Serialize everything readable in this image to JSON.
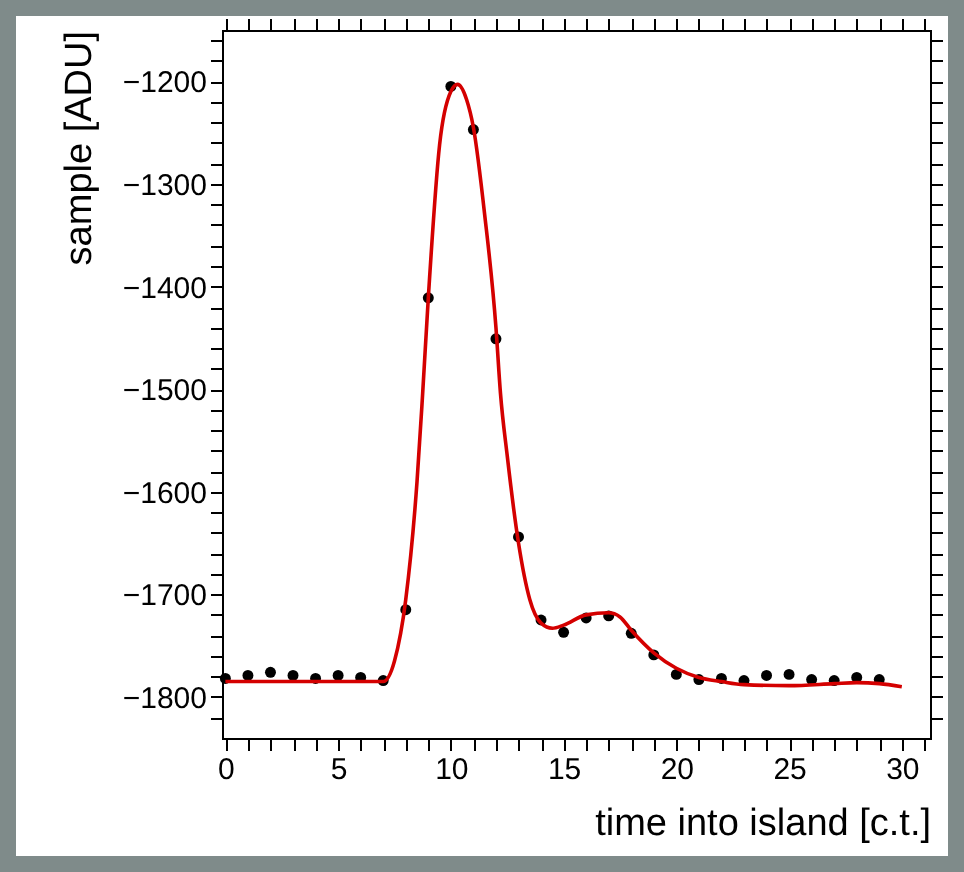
{
  "chart_data": {
    "type": "scatter",
    "xlabel": "time into island [c.t.]",
    "ylabel": "sample [ADU]",
    "xlim": [
      -0.15,
      31.25
    ],
    "ylim": [
      -1840,
      -1150
    ],
    "xticks": [
      0,
      {
        "value": 1,
        "label": null
      },
      {
        "value": 2,
        "label": null
      },
      {
        "value": 3,
        "label": null
      },
      {
        "value": 4,
        "label": null
      },
      5,
      {
        "value": 6,
        "label": null
      },
      {
        "value": 7,
        "label": null
      },
      {
        "value": 8,
        "label": null
      },
      {
        "value": 9,
        "label": null
      },
      10,
      {
        "value": 11,
        "label": null
      },
      {
        "value": 12,
        "label": null
      },
      {
        "value": 13,
        "label": null
      },
      {
        "value": 14,
        "label": null
      },
      15,
      {
        "value": 16,
        "label": null
      },
      {
        "value": 17,
        "label": null
      },
      {
        "value": 18,
        "label": null
      },
      {
        "value": 19,
        "label": null
      },
      20,
      {
        "value": 21,
        "label": null
      },
      {
        "value": 22,
        "label": null
      },
      {
        "value": 23,
        "label": null
      },
      {
        "value": 24,
        "label": null
      },
      25,
      {
        "value": 26,
        "label": null
      },
      {
        "value": 27,
        "label": null
      },
      {
        "value": 28,
        "label": null
      },
      {
        "value": 29,
        "label": null
      },
      30,
      {
        "value": 31,
        "label": null
      }
    ],
    "yticks": [
      {
        "value": -1820,
        "label": null
      },
      -1800,
      {
        "value": -1780,
        "label": null
      },
      {
        "value": -1760,
        "label": null
      },
      {
        "value": -1740,
        "label": null
      },
      {
        "value": -1720,
        "label": null
      },
      -1700,
      {
        "value": -1680,
        "label": null
      },
      {
        "value": -1660,
        "label": null
      },
      {
        "value": -1640,
        "label": null
      },
      {
        "value": -1620,
        "label": null
      },
      -1600,
      {
        "value": -1580,
        "label": null
      },
      {
        "value": -1560,
        "label": null
      },
      {
        "value": -1540,
        "label": null
      },
      {
        "value": -1520,
        "label": null
      },
      -1500,
      {
        "value": -1480,
        "label": null
      },
      {
        "value": -1460,
        "label": null
      },
      {
        "value": -1440,
        "label": null
      },
      {
        "value": -1420,
        "label": null
      },
      -1400,
      {
        "value": -1380,
        "label": null
      },
      {
        "value": -1360,
        "label": null
      },
      {
        "value": -1340,
        "label": null
      },
      {
        "value": -1320,
        "label": null
      },
      -1300,
      {
        "value": -1280,
        "label": null
      },
      {
        "value": -1260,
        "label": null
      },
      {
        "value": -1240,
        "label": null
      },
      {
        "value": -1220,
        "label": null
      },
      -1200,
      {
        "value": -1180,
        "label": null
      },
      {
        "value": -1160,
        "label": null
      }
    ],
    "grid": false,
    "series": [
      {
        "color": "#000000",
        "marker": "circle",
        "x": [
          0,
          1,
          2,
          3,
          4,
          5,
          6,
          7,
          8,
          9,
          10,
          11,
          12,
          13,
          14,
          15,
          16,
          17,
          18,
          19,
          20,
          21,
          22,
          23,
          24,
          25,
          26,
          27,
          28,
          29
        ],
        "values": [
          -1782,
          -1779,
          -1776,
          -1779,
          -1782,
          -1779,
          -1781,
          -1784,
          -1715,
          -1411,
          -1205,
          -1247,
          -1451,
          -1644,
          -1725,
          -1737,
          -1723,
          -1721,
          -1738,
          -1759,
          -1778,
          -1783,
          -1782,
          -1784,
          -1779,
          -1778,
          -1783,
          -1784,
          -1781,
          -1783
        ]
      },
      {
        "type": "line",
        "color": "#d40000",
        "marker": "none",
        "line_style": "solid",
        "x": [
          0,
          2,
          4,
          6,
          7,
          7.5,
          8,
          8.5,
          8.75,
          9,
          9.5,
          10,
          10.3,
          10.7,
          11,
          11.5,
          12,
          12.2,
          12.5,
          13,
          13.5,
          14,
          14.5,
          15,
          16,
          17,
          17.5,
          18,
          19,
          20,
          21,
          22,
          23,
          25,
          27,
          28,
          29,
          30
        ],
        "values": [
          -1785,
          -1785,
          -1785,
          -1785,
          -1785,
          -1765,
          -1705,
          -1590,
          -1504,
          -1411,
          -1262,
          -1210,
          -1203,
          -1218,
          -1245,
          -1330,
          -1440,
          -1504,
          -1565,
          -1650,
          -1705,
          -1728,
          -1733,
          -1730,
          -1720,
          -1718,
          -1722,
          -1735,
          -1757,
          -1772,
          -1781,
          -1785,
          -1788,
          -1789,
          -1787,
          -1786,
          -1787,
          -1790
        ]
      }
    ]
  }
}
